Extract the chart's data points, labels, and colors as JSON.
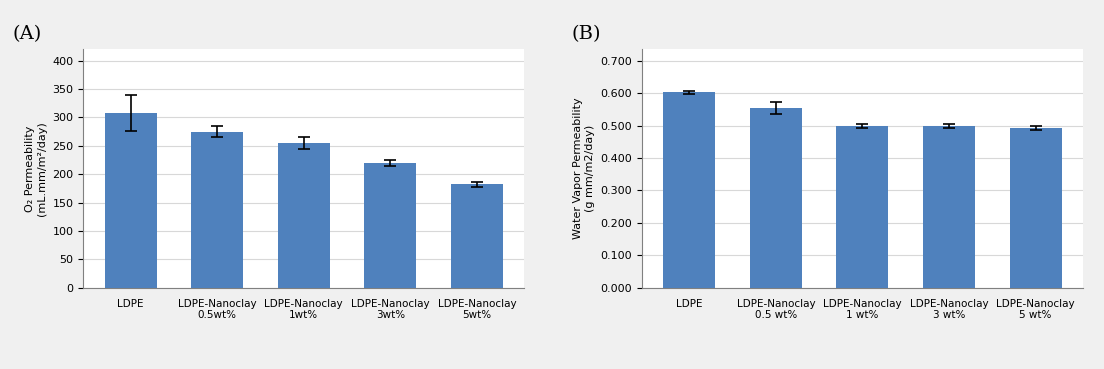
{
  "chart_A": {
    "panel_label": "(A)",
    "categories_line1": [
      "LDPE",
      "LDPE-Nanoclay",
      "LDPE-Nanoclay",
      "LDPE-Nanoclay",
      "LDPE-Nanoclay"
    ],
    "categories_line2": [
      "",
      "0.5wt%",
      "1wt%",
      "3wt%",
      "5wt%"
    ],
    "values": [
      308,
      275,
      255,
      220,
      182
    ],
    "errors": [
      32,
      10,
      10,
      5,
      5
    ],
    "ylabel_line1": "O₂ Permeability",
    "ylabel_line2": "(mL.mm/m²/day)",
    "ylim": [
      0,
      420
    ],
    "yticks": [
      0,
      50,
      100,
      150,
      200,
      250,
      300,
      350,
      400
    ],
    "bar_color": "#4f81bd",
    "bar_width": 0.6
  },
  "chart_B": {
    "panel_label": "(B)",
    "categories_line1": [
      "LDPE",
      "LDPE-Nanoclay",
      "LDPE-Nanoclay",
      "LDPE-Nanoclay",
      "LDPE-Nanoclay"
    ],
    "categories_line2": [
      "",
      "0.5 wt%",
      "1 wt%",
      "3 wt%",
      "5 wt%"
    ],
    "values": [
      0.602,
      0.553,
      0.498,
      0.499,
      0.493
    ],
    "errors": [
      0.005,
      0.018,
      0.006,
      0.007,
      0.006
    ],
    "ylabel_line1": "Water Vapor Permeability",
    "ylabel_line2": "(g mm/m2/day)",
    "ylim": [
      0.0,
      0.735
    ],
    "yticks": [
      0.0,
      0.1,
      0.2,
      0.3,
      0.4,
      0.5,
      0.6,
      0.7
    ],
    "bar_color": "#4f81bd",
    "bar_width": 0.6
  },
  "background_color": "#ffffff",
  "grid_color": "#e0e0e0",
  "fig_background": "#f0f0f0",
  "fig_width": 11.04,
  "fig_height": 3.69
}
